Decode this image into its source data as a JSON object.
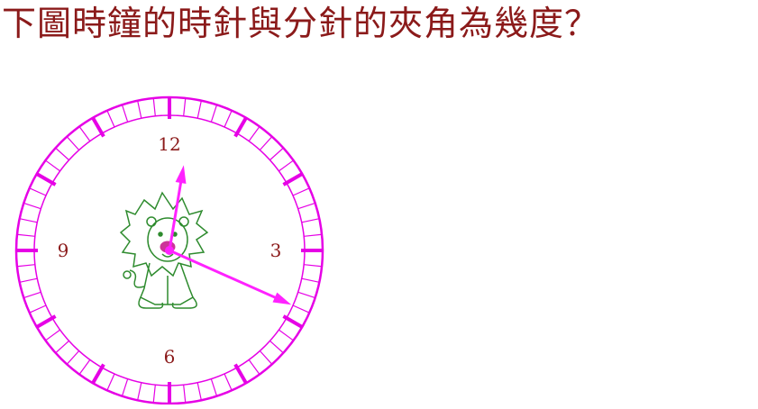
{
  "question": {
    "text": "下圖時鐘的時針與分針的夾角為幾度？"
  },
  "clock": {
    "numbers": [
      {
        "label": "12",
        "angle": 0
      },
      {
        "label": "3",
        "angle": 90
      },
      {
        "label": "6",
        "angle": 180
      },
      {
        "label": "9",
        "angle": 270
      }
    ],
    "time": {
      "hour": 12,
      "minute": 19
    },
    "colors": {
      "dial": "#e600e6",
      "hands": "#ff22ff",
      "numbers": "#8b1a1a",
      "lion": "#2e8b2e"
    }
  }
}
